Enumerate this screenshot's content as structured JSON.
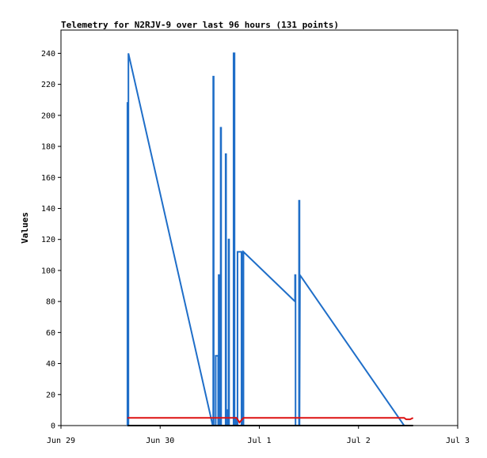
{
  "chart_data": {
    "type": "line",
    "title": "Telemetry for N2RJV-9 over last 96 hours (131 points)",
    "xlabel": "",
    "ylabel": "Values",
    "ylim": [
      0,
      255
    ],
    "xlim": [
      0,
      4
    ],
    "yticks": [
      0,
      20,
      40,
      60,
      80,
      100,
      120,
      140,
      160,
      180,
      200,
      220,
      240
    ],
    "xticks": [
      {
        "value": 0,
        "label": "Jun 29"
      },
      {
        "value": 1,
        "label": "Jun 30"
      },
      {
        "value": 2,
        "label": "Jul 1"
      },
      {
        "value": 3,
        "label": "Jul 2"
      },
      {
        "value": 4,
        "label": "Jul 3"
      }
    ],
    "grid": false,
    "colors": {
      "series_blue": "#1f6ec8",
      "series_red": "#dd1111",
      "series_black": "#000000",
      "axis": "#000000"
    },
    "series": [
      {
        "color": "#1f6ec8",
        "x": [
          0.67,
          0.67,
          0.675,
          0.675,
          0.68,
          0.68,
          1.53,
          1.535,
          1.535,
          1.54,
          1.54,
          1.56,
          1.56,
          1.585,
          1.585,
          1.59,
          1.59,
          1.6,
          1.6,
          1.61,
          1.61,
          1.615,
          1.615,
          1.66,
          1.66,
          1.665,
          1.665,
          1.67,
          1.67,
          1.68,
          1.68,
          1.69,
          1.69,
          1.695,
          1.695,
          1.74,
          1.74,
          1.75,
          1.75,
          1.76,
          1.76,
          1.77,
          1.77,
          1.78,
          1.78,
          1.82,
          1.82,
          1.825,
          1.825,
          1.83,
          1.83,
          1.84,
          1.84,
          2.36,
          2.36,
          2.365,
          2.365,
          2.4,
          2.4,
          2.405,
          2.405,
          2.41,
          3.46
        ],
        "y": [
          0,
          208,
          208,
          0,
          0,
          240,
          0,
          0,
          225,
          225,
          0,
          0,
          45,
          45,
          0,
          0,
          97,
          97,
          0,
          0,
          192,
          192,
          0,
          0,
          175,
          175,
          0,
          0,
          10,
          10,
          0,
          0,
          120,
          120,
          0,
          0,
          240,
          240,
          0,
          0,
          5,
          5,
          0,
          0,
          112,
          112,
          0,
          0,
          112,
          112,
          0,
          0,
          112,
          80,
          97,
          97,
          0,
          0,
          145,
          145,
          0,
          97,
          0
        ]
      },
      {
        "color": "#dd1111",
        "x": [
          0.67,
          1.77,
          1.8,
          1.84,
          1.9,
          3.46,
          3.48,
          3.52,
          3.55
        ],
        "y": [
          5,
          5,
          2,
          5,
          5,
          5,
          4,
          4,
          5
        ]
      },
      {
        "color": "#000000",
        "x": [
          0.67,
          3.55
        ],
        "y": [
          0,
          0
        ]
      }
    ]
  }
}
